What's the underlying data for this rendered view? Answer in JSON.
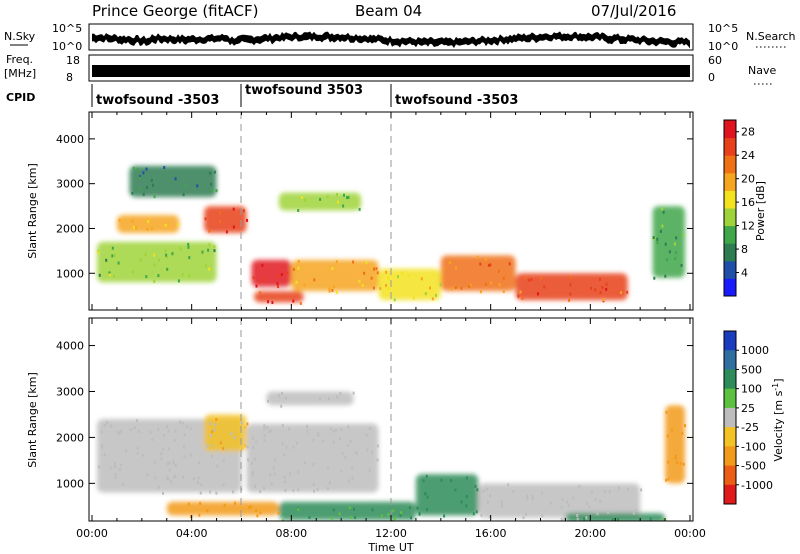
{
  "header": {
    "station": "Prince George (fitACF)",
    "beam": "Beam 04",
    "date": "07/Jul/2016"
  },
  "nsky": {
    "label": "N.Sky",
    "tick_top": "10^5",
    "tick_bottom": "10^0",
    "right_label": "N.Search"
  },
  "freq": {
    "label_top": "Freq.",
    "label_bottom": "[MHz]",
    "tick_top": "18",
    "tick_bottom": "8",
    "nave_tick_top": "60",
    "nave_tick_bottom": "0",
    "right_label": "Nave"
  },
  "cpid": {
    "label": "CPID",
    "segments": [
      {
        "label": "twofsound -3503",
        "start_hour": 0
      },
      {
        "label": "twofsound 3503",
        "start_hour": 6
      },
      {
        "label": "twofsound -3503",
        "start_hour": 12
      }
    ]
  },
  "power_panel": {
    "ylabel": "Slant Range [km]",
    "yticks": [
      "1000",
      "2000",
      "3000",
      "4000"
    ],
    "colorbar_label": "Power [dB]",
    "colorbar_ticks": [
      "4",
      "8",
      "12",
      "16",
      "20",
      "24",
      "28"
    ],
    "colorbar_colors": [
      "#1a1aff",
      "#1f4fa8",
      "#2e7d52",
      "#3fa64a",
      "#9fd33a",
      "#f3e21e",
      "#f6a520",
      "#f07015",
      "#e8401a",
      "#e0141e"
    ]
  },
  "velocity_panel": {
    "ylabel": "Slant Range [km]",
    "yticks": [
      "1000",
      "2000",
      "3000",
      "4000"
    ],
    "colorbar_label": "Velocity [m s",
    "colorbar_label_sup": "-1",
    "colorbar_label_end": "]",
    "colorbar_ticks": [
      "1000",
      "500",
      "100",
      "25",
      "-25",
      "-100",
      "-500",
      "-1000"
    ],
    "colorbar_colors": [
      "#1a3dbf",
      "#2e6fa0",
      "#2e8c5a",
      "#5cc040",
      "#bdbdbd",
      "#f3c225",
      "#f29a1a",
      "#ec5e16",
      "#e01a1a"
    ]
  },
  "xaxis": {
    "label": "Time UT",
    "ticks": [
      "00:00",
      "04:00",
      "08:00",
      "12:00",
      "16:00",
      "20:00",
      "00:00"
    ]
  },
  "chart_data": {
    "type": "heatmap",
    "x_range_hours": [
      0,
      24
    ],
    "y_range_km": [
      180,
      4600
    ],
    "markers_hours": [
      6,
      12
    ],
    "power_regions": [
      {
        "t0": 0.2,
        "t1": 5.0,
        "r0": 800,
        "r1": 1700,
        "level": 12
      },
      {
        "t0": 1.0,
        "t1": 3.5,
        "r0": 1900,
        "r1": 2300,
        "level": 20
      },
      {
        "t0": 4.5,
        "t1": 6.2,
        "r0": 1900,
        "r1": 2500,
        "level": 24
      },
      {
        "t0": 6.4,
        "t1": 8.0,
        "r0": 700,
        "r1": 1300,
        "level": 28
      },
      {
        "t0": 8.0,
        "t1": 11.5,
        "r0": 600,
        "r1": 1300,
        "level": 20
      },
      {
        "t0": 6.5,
        "t1": 8.5,
        "r0": 350,
        "r1": 600,
        "level": 26
      },
      {
        "t0": 11.5,
        "t1": 14.0,
        "r0": 400,
        "r1": 1100,
        "level": 16
      },
      {
        "t0": 14.0,
        "t1": 17.0,
        "r0": 600,
        "r1": 1400,
        "level": 22
      },
      {
        "t0": 17.0,
        "t1": 21.5,
        "r0": 400,
        "r1": 1000,
        "level": 24
      },
      {
        "t0": 1.5,
        "t1": 5.0,
        "r0": 2700,
        "r1": 3400,
        "level": 8
      },
      {
        "t0": 7.5,
        "t1": 10.8,
        "r0": 2400,
        "r1": 2800,
        "level": 14
      },
      {
        "t0": 22.5,
        "t1": 23.8,
        "r0": 900,
        "r1": 2500,
        "level": 10
      }
    ],
    "velocity_regions": [
      {
        "t0": 0.2,
        "t1": 6.0,
        "r0": 800,
        "r1": 2400,
        "level": 0
      },
      {
        "t0": 4.5,
        "t1": 6.2,
        "r0": 1700,
        "r1": 2500,
        "level": -100
      },
      {
        "t0": 6.2,
        "t1": 11.5,
        "r0": 800,
        "r1": 2300,
        "level": 0
      },
      {
        "t0": 7.0,
        "t1": 10.5,
        "r0": 2700,
        "r1": 3000,
        "level": 0
      },
      {
        "t0": 3.0,
        "t1": 7.5,
        "r0": 300,
        "r1": 600,
        "level": -300
      },
      {
        "t0": 7.5,
        "t1": 13.0,
        "r0": 200,
        "r1": 600,
        "level": 100
      },
      {
        "t0": 13.0,
        "t1": 15.5,
        "r0": 300,
        "r1": 1200,
        "level": 150
      },
      {
        "t0": 15.5,
        "t1": 22.0,
        "r0": 250,
        "r1": 1000,
        "level": 0
      },
      {
        "t0": 19.0,
        "t1": 23.0,
        "r0": 150,
        "r1": 350,
        "level": 100
      },
      {
        "t0": 23.0,
        "t1": 23.8,
        "r0": 1000,
        "r1": 2700,
        "level": -300
      }
    ]
  }
}
